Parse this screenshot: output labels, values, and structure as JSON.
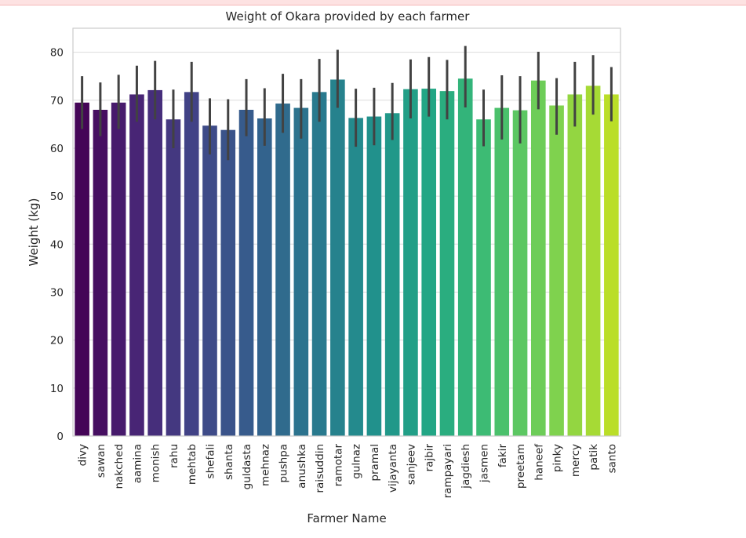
{
  "chart_data": {
    "type": "bar",
    "title": "Weight of Okara provided by each farmer",
    "xlabel": "Farmer Name",
    "ylabel": "Weight (kg)",
    "ylim": [
      0,
      85
    ],
    "yticks": [
      0,
      10,
      20,
      30,
      40,
      50,
      60,
      70,
      80
    ],
    "grid": "horizontal",
    "palette": "viridis",
    "categories": [
      "divy",
      "sawan",
      "nakched",
      "aamina",
      "monish",
      "rahu",
      "mehtab",
      "shefali",
      "shanta",
      "guldasta",
      "mehnaz",
      "pushpa",
      "anushka",
      "raisuddin",
      "ramotar",
      "gulnaz",
      "pramal",
      "vijayanta",
      "sanjeev",
      "rajbir",
      "rampayari",
      "jagdiesh",
      "jasmen",
      "fakir",
      "preetam",
      "haneef",
      "pinky",
      "mercy",
      "patik",
      "santo"
    ],
    "values": [
      69.5,
      68.0,
      69.5,
      71.2,
      72.1,
      66.0,
      71.7,
      64.7,
      63.8,
      68.0,
      66.2,
      69.3,
      68.4,
      71.7,
      74.3,
      66.3,
      66.6,
      67.3,
      72.3,
      72.4,
      71.9,
      74.5,
      66.0,
      68.4,
      67.9,
      74.1,
      68.9,
      71.2,
      73.0,
      71.2
    ],
    "error_low": [
      64.0,
      62.5,
      64.0,
      65.5,
      66.0,
      60.0,
      65.5,
      58.7,
      57.5,
      62.5,
      60.5,
      63.2,
      62.0,
      65.5,
      68.4,
      60.3,
      60.6,
      61.7,
      66.2,
      66.6,
      66.0,
      68.5,
      60.4,
      61.8,
      61.0,
      68.1,
      62.8,
      64.5,
      67.0,
      65.6
    ],
    "error_high": [
      75.0,
      73.7,
      75.3,
      77.2,
      78.2,
      72.2,
      78.0,
      70.4,
      70.2,
      74.4,
      72.5,
      75.5,
      74.4,
      78.6,
      80.5,
      72.4,
      72.6,
      73.6,
      78.5,
      79.0,
      78.4,
      81.3,
      72.2,
      75.2,
      75.0,
      80.1,
      74.6,
      78.0,
      79.4,
      76.9
    ]
  }
}
